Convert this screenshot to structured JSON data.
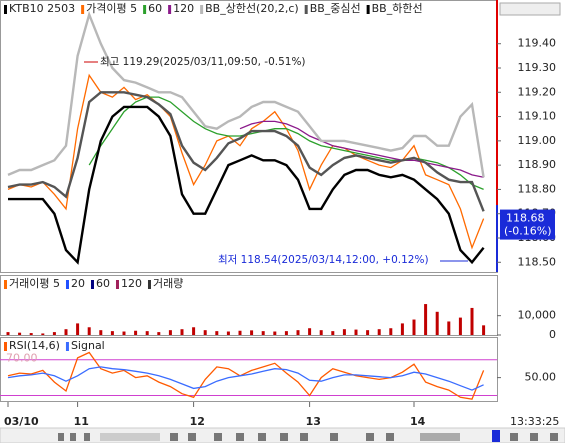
{
  "chart_data": [
    {
      "type": "line",
      "title": "KTB10 2503",
      "ylim": [
        118.46,
        119.58
      ],
      "yticks": [
        {
          "value": 119.4,
          "label": "119.40"
        },
        {
          "value": 119.3,
          "label": "119.30"
        },
        {
          "value": 119.2,
          "label": "119.20"
        },
        {
          "value": 119.1,
          "label": "119.10"
        },
        {
          "value": 119.0,
          "label": "119.00"
        },
        {
          "value": 118.9,
          "label": "118.90"
        },
        {
          "value": 118.8,
          "label": "118.80"
        },
        {
          "value": 118.7,
          "label": "118.70"
        },
        {
          "value": 118.6,
          "label": "118.60"
        },
        {
          "value": 118.5,
          "label": "118.50"
        }
      ],
      "series": [
        {
          "name": "가격이평 5",
          "color": "#ff6a00",
          "values": [
            118.8,
            118.82,
            118.81,
            118.83,
            118.78,
            118.72,
            119.05,
            119.27,
            119.2,
            119.18,
            119.22,
            119.17,
            119.19,
            119.15,
            119.1,
            118.95,
            118.82,
            118.9,
            119.0,
            119.02,
            118.98,
            119.05,
            119.08,
            119.12,
            119.05,
            118.96,
            118.8,
            118.9,
            118.98,
            118.97,
            118.94,
            118.92,
            118.9,
            118.89,
            118.92,
            118.98,
            118.86,
            118.84,
            118.82,
            118.72,
            118.56,
            118.68
          ]
        },
        {
          "name": "60",
          "color": "#2ca02c",
          "values": [
            null,
            null,
            null,
            null,
            null,
            null,
            null,
            118.9,
            118.98,
            119.05,
            119.12,
            119.16,
            119.18,
            119.18,
            119.16,
            119.12,
            119.08,
            119.05,
            119.03,
            119.02,
            119.02,
            119.03,
            119.04,
            119.05,
            119.05,
            119.03,
            119.0,
            118.98,
            118.97,
            118.96,
            118.95,
            118.94,
            118.93,
            118.92,
            118.92,
            118.93,
            118.92,
            118.91,
            118.89,
            118.86,
            118.82,
            118.8
          ]
        },
        {
          "name": "120",
          "color": "#8b1a8b",
          "values": [
            null,
            null,
            null,
            null,
            null,
            null,
            null,
            null,
            null,
            null,
            null,
            null,
            null,
            null,
            null,
            null,
            null,
            null,
            null,
            null,
            119.05,
            119.07,
            119.08,
            119.08,
            119.07,
            119.05,
            119.02,
            119.0,
            118.98,
            118.97,
            118.96,
            118.95,
            118.94,
            118.93,
            118.92,
            118.92,
            118.91,
            118.9,
            118.89,
            118.88,
            118.86,
            118.85
          ]
        },
        {
          "name": "BB_상한선(20,2,c)",
          "color": "#b8b8b8",
          "values": [
            118.86,
            118.88,
            118.88,
            118.9,
            118.92,
            118.98,
            119.35,
            119.52,
            119.4,
            119.3,
            119.25,
            119.24,
            119.22,
            119.2,
            119.2,
            119.18,
            119.12,
            119.06,
            119.05,
            119.08,
            119.1,
            119.14,
            119.16,
            119.16,
            119.14,
            119.12,
            119.06,
            119.0,
            119.0,
            119.0,
            118.99,
            118.98,
            118.97,
            118.96,
            118.97,
            119.02,
            119.02,
            118.98,
            118.98,
            119.1,
            119.15,
            118.85
          ]
        },
        {
          "name": "BB_중심선",
          "color": "#555555",
          "values": [
            118.81,
            118.82,
            118.82,
            118.83,
            118.81,
            118.77,
            118.93,
            119.16,
            119.2,
            119.2,
            119.2,
            119.19,
            119.18,
            119.15,
            119.11,
            118.98,
            118.91,
            118.88,
            118.93,
            118.99,
            119.01,
            119.04,
            119.04,
            119.04,
            119.02,
            118.98,
            118.89,
            118.86,
            118.9,
            118.93,
            118.94,
            118.93,
            118.92,
            118.91,
            118.92,
            118.93,
            118.91,
            118.87,
            118.84,
            118.83,
            118.83,
            118.71
          ]
        },
        {
          "name": "BB_하한선",
          "color": "#000000",
          "values": [
            118.76,
            118.76,
            118.76,
            118.76,
            118.7,
            118.55,
            118.5,
            118.8,
            119.0,
            119.1,
            119.14,
            119.14,
            119.14,
            119.1,
            119.02,
            118.78,
            118.7,
            118.7,
            118.8,
            118.9,
            118.92,
            118.94,
            118.92,
            118.92,
            118.9,
            118.84,
            118.72,
            118.72,
            118.8,
            118.86,
            118.88,
            118.88,
            118.86,
            118.85,
            118.86,
            118.84,
            118.8,
            118.76,
            118.7,
            118.55,
            118.5,
            118.56
          ]
        }
      ],
      "annotations": [
        "최고 119.29(2025/03/11,09:50, -0.51%)",
        "최저 118.54(2025/03/14,12:00, +0.12%)"
      ],
      "last": {
        "value": 118.68,
        "label": "118.68",
        "change": "(-0.16%)"
      }
    },
    {
      "type": "bar",
      "ylim": [
        0,
        30000
      ],
      "yticks": [
        {
          "value": 10000,
          "label": "10,000"
        },
        0
      ],
      "legend": [
        {
          "name": "거래이평 5",
          "color": "#ff6a00"
        },
        {
          "name": "20",
          "color": "#1f4fff"
        },
        {
          "name": "60",
          "color": "#000080"
        },
        {
          "name": "120",
          "color": "#a0205a"
        },
        {
          "name": "거래량",
          "color": "#333333"
        }
      ],
      "series": [
        {
          "name": "거래량",
          "color": "#c00000",
          "values": [
            1500,
            1200,
            1000,
            800,
            1500,
            3000,
            6000,
            4000,
            2500,
            2000,
            1800,
            2200,
            2000,
            1500,
            2500,
            3000,
            4000,
            2500,
            2000,
            1800,
            2200,
            2400,
            2000,
            1800,
            2000,
            2500,
            3500,
            2500,
            2000,
            3000,
            2800,
            2500,
            3000,
            3500,
            6000,
            8000,
            16000,
            12000,
            7000,
            9000,
            14000,
            5000
          ]
        }
      ]
    },
    {
      "type": "line",
      "ylim": [
        25,
        92
      ],
      "yticks": [
        {
          "value": 50,
          "label": "50.00"
        }
      ],
      "levels": [
        {
          "value": 70,
          "label": "70.00"
        },
        {
          "value": 30,
          "label": "30.00"
        }
      ],
      "series": [
        {
          "name": "RSI(14,6)",
          "color": "#ff5a00",
          "values": [
            52,
            55,
            54,
            58,
            45,
            35,
            72,
            78,
            60,
            55,
            58,
            50,
            52,
            45,
            40,
            32,
            28,
            48,
            62,
            60,
            52,
            58,
            62,
            66,
            55,
            45,
            30,
            50,
            60,
            56,
            52,
            50,
            48,
            50,
            56,
            65,
            45,
            40,
            36,
            28,
            26,
            58
          ]
        },
        {
          "name": "Signal",
          "color": "#3a6cff",
          "values": [
            50,
            52,
            53,
            55,
            52,
            46,
            52,
            60,
            62,
            60,
            59,
            57,
            55,
            52,
            48,
            43,
            38,
            40,
            46,
            50,
            52,
            54,
            57,
            60,
            59,
            55,
            47,
            46,
            50,
            53,
            53,
            52,
            51,
            50,
            52,
            56,
            54,
            50,
            46,
            41,
            36,
            42
          ]
        }
      ]
    }
  ],
  "x_axis": {
    "categories": [
      "03/10",
      null,
      null,
      null,
      null,
      null,
      "11",
      null,
      null,
      null,
      null,
      null,
      null,
      null,
      null,
      null,
      "12",
      null,
      null,
      null,
      null,
      null,
      null,
      null,
      null,
      null,
      "13",
      null,
      null,
      null,
      null,
      null,
      null,
      null,
      null,
      "14",
      null,
      null,
      null,
      null,
      null,
      null
    ]
  },
  "time": "13:33:25"
}
